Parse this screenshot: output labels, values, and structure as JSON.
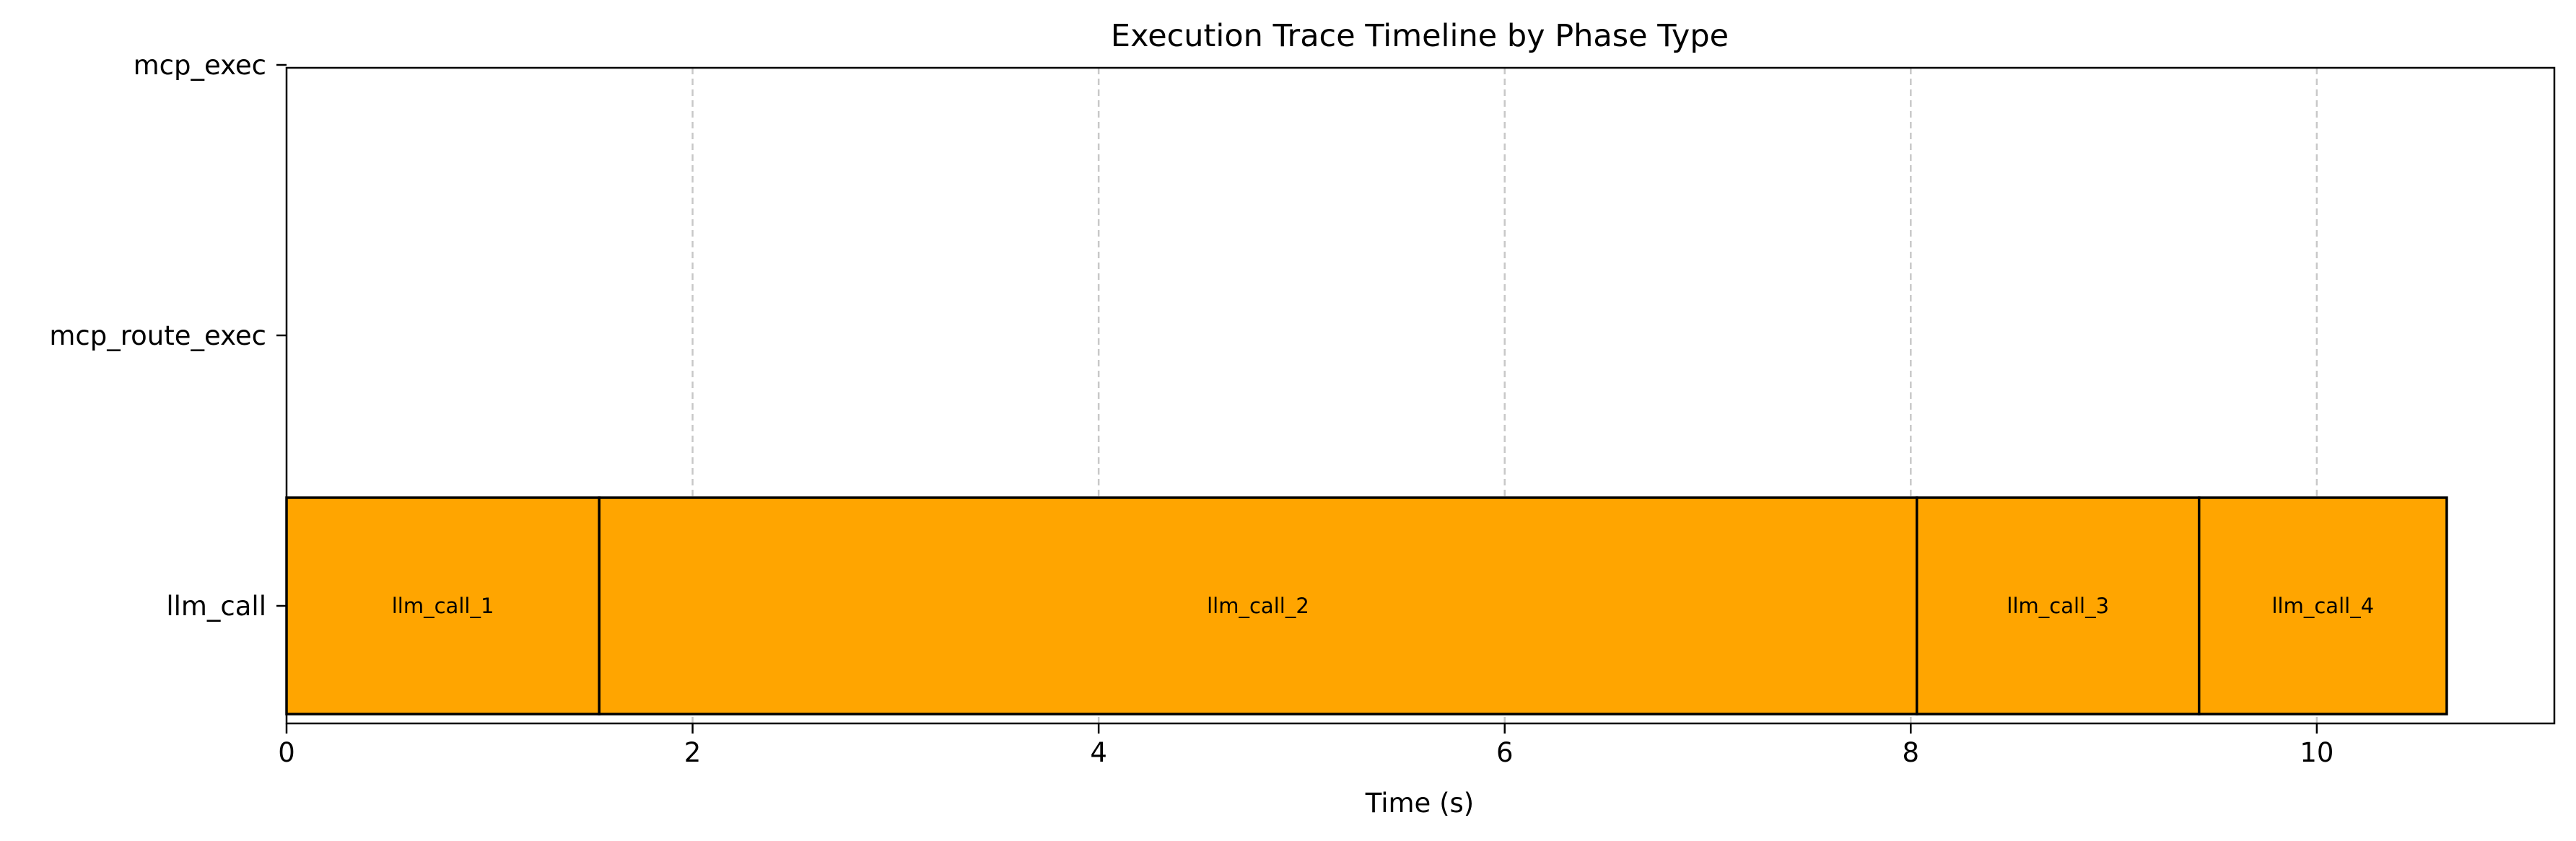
{
  "chart_data": {
    "type": "bar",
    "orientation": "horizontal-timeline",
    "title": "Execution Trace Timeline by Phase Type",
    "xlabel": "Time (s)",
    "ylabel": "",
    "xlim": [
      0,
      11.17
    ],
    "xticks": [
      0,
      2,
      4,
      6,
      8,
      10
    ],
    "categories": [
      "llm_call",
      "mcp_route_exec",
      "mcp_exec"
    ],
    "grid": "vertical-dashed",
    "bar_color": "#ffa500",
    "edge_color": "#000000",
    "bars": [
      {
        "category": "llm_call",
        "label": "llm_call_1",
        "start": 0.0,
        "end": 1.54
      },
      {
        "category": "llm_call",
        "label": "llm_call_2",
        "start": 1.54,
        "end": 8.03
      },
      {
        "category": "llm_call",
        "label": "llm_call_3",
        "start": 8.03,
        "end": 9.42
      },
      {
        "category": "llm_call",
        "label": "llm_call_4",
        "start": 9.42,
        "end": 10.64
      }
    ]
  }
}
